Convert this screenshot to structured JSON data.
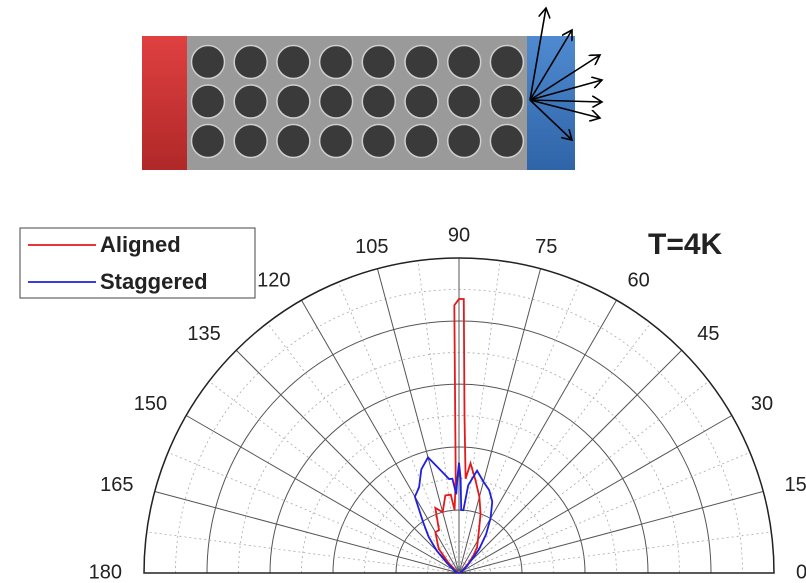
{
  "chart_data": {
    "type": "polar",
    "annotation": "T=4K",
    "legend": "top-left",
    "thetalim": [
      0,
      180
    ],
    "thetaticks": [
      0,
      15,
      30,
      45,
      60,
      75,
      90,
      105,
      120,
      135,
      150,
      165,
      180
    ],
    "rlim": [
      0,
      1
    ],
    "rticks": [
      0.1,
      0.2,
      0.3,
      0.4,
      0.5,
      0.6,
      0.7,
      0.8,
      0.9,
      1
    ],
    "grid": true,
    "x": [
      0,
      10,
      20,
      30,
      40,
      45,
      50,
      55,
      60,
      65,
      70,
      75,
      80,
      84,
      86,
      88,
      89,
      90,
      91,
      92,
      94,
      96,
      100,
      105,
      110,
      115,
      120,
      125,
      130,
      135,
      140,
      150,
      160,
      170,
      180
    ],
    "series": [
      {
        "name": "Aligned",
        "color": "#e31a1c",
        "values": [
          0,
          0,
          0,
          0.01,
          0.02,
          0.04,
          0.07,
          0.1,
          0.12,
          0.15,
          0.2,
          0.25,
          0.3,
          0.35,
          0.3,
          0.5,
          0.87,
          0.87,
          0.85,
          0.3,
          0.2,
          0.25,
          0.25,
          0.2,
          0.22,
          0.15,
          0.15,
          0.12,
          0.1,
          0.05,
          0.03,
          0.01,
          0,
          0,
          0
        ]
      },
      {
        "name": "Staggered",
        "color": "#1f1fe0",
        "values": [
          0,
          0,
          0,
          0.01,
          0.03,
          0.05,
          0.1,
          0.15,
          0.2,
          0.25,
          0.28,
          0.3,
          0.33,
          0.28,
          0.2,
          0.2,
          0.3,
          0.35,
          0.3,
          0.25,
          0.3,
          0.3,
          0.33,
          0.38,
          0.35,
          0.3,
          0.28,
          0.2,
          0.15,
          0.1,
          0.05,
          0.02,
          0.01,
          0,
          0
        ]
      }
    ]
  }
}
